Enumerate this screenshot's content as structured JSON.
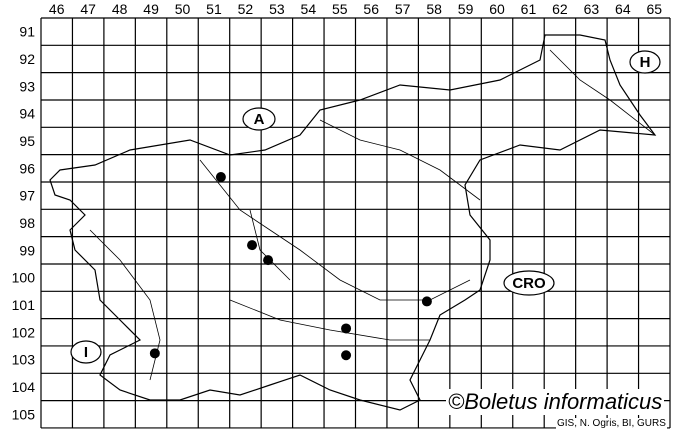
{
  "map": {
    "columns": [
      "46",
      "47",
      "48",
      "49",
      "50",
      "51",
      "52",
      "53",
      "54",
      "55",
      "56",
      "57",
      "58",
      "59",
      "60",
      "61",
      "62",
      "63",
      "64",
      "65"
    ],
    "rows": [
      "91",
      "92",
      "93",
      "94",
      "95",
      "96",
      "97",
      "98",
      "99",
      "100",
      "101",
      "102",
      "103",
      "104",
      "105"
    ],
    "country_labels": [
      {
        "id": "austria",
        "text": "A"
      },
      {
        "id": "hungary",
        "text": "H"
      },
      {
        "id": "croatia",
        "text": "CRO"
      },
      {
        "id": "italy",
        "text": "I"
      }
    ],
    "records": [
      {
        "col": 51.72,
        "row": 96.82
      },
      {
        "col": 52.71,
        "row": 99.31
      },
      {
        "col": 53.22,
        "row": 99.86
      },
      {
        "col": 58.27,
        "row": 101.37
      },
      {
        "col": 55.7,
        "row": 102.36
      },
      {
        "col": 55.7,
        "row": 103.34
      },
      {
        "col": 49.62,
        "row": 103.27
      }
    ],
    "point_color": "#000000",
    "grid_color": "#000000"
  },
  "copyright": "©Boletus informaticus",
  "credit": "GIS, N. Ogris, BI, GURS"
}
